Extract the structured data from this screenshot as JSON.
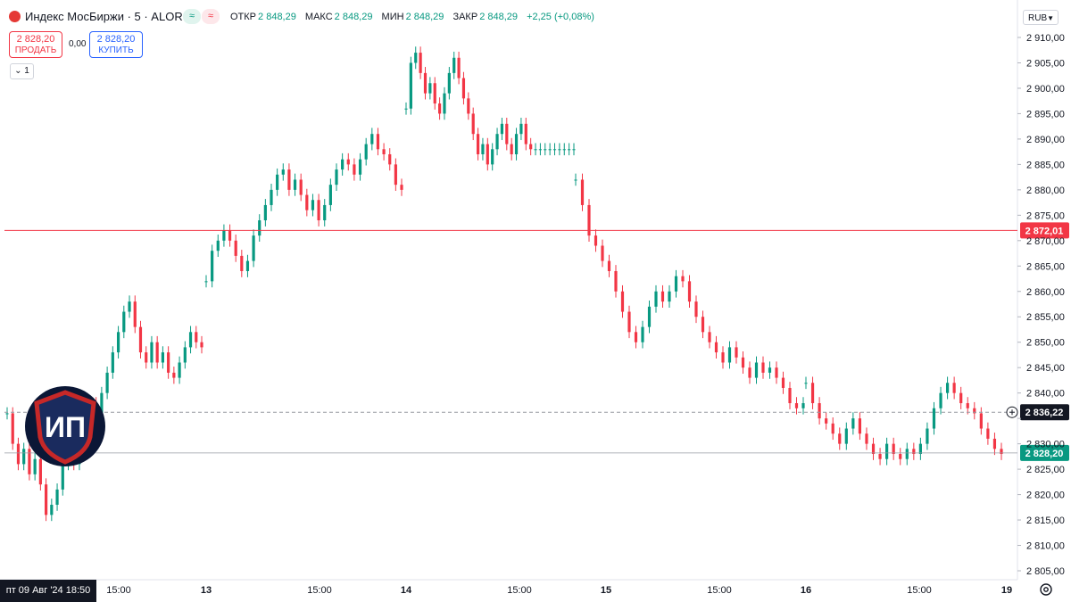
{
  "header": {
    "symbol_title": "Индекс МосБиржи · 5 · ALOR",
    "toggle_left": "≈",
    "toggle_right": "≈",
    "open_label": "ОТКР",
    "open_value": "2 848,29",
    "high_label": "МАКС",
    "high_value": "2 848,29",
    "low_label": "МИН",
    "low_value": "2 848,29",
    "close_label": "ЗАКР",
    "close_value": "2 848,29",
    "change": "+2,25 (+0,08%)"
  },
  "trade": {
    "sell_price": "2 828,20",
    "sell_label": "ПРОДАТЬ",
    "spread": "0,00",
    "buy_price": "2 828,20",
    "buy_label": "КУПИТЬ"
  },
  "collapse_label": "1",
  "currency": "RUB",
  "watermark_text": "ИП",
  "bottom_date": "пт 09 Авг '24   18:50",
  "chart_data": {
    "type": "candlestick",
    "y_axis": {
      "ticks": [
        2910,
        2905,
        2900,
        2895,
        2890,
        2885,
        2880,
        2875,
        2870,
        2865,
        2860,
        2855,
        2850,
        2845,
        2840,
        2835,
        2830,
        2825,
        2820,
        2815,
        2810,
        2805
      ],
      "tick_labels": [
        "2 910,00",
        "2 905,00",
        "2 900,00",
        "2 895,00",
        "2 890,00",
        "2 885,00",
        "2 880,00",
        "2 875,00",
        "2 870,00",
        "2 865,00",
        "2 860,00",
        "2 855,00",
        "2 850,00",
        "2 845,00",
        "2 840,00",
        "",
        "2 830,00",
        "2 825,00",
        "2 820,00",
        "2 815,00",
        "2 810,00",
        "2 805,00"
      ]
    },
    "x_axis": {
      "labels": [
        "15:00",
        "13",
        "15:00",
        "14",
        "15:00",
        "15",
        "15:00",
        "16",
        "15:00",
        "19"
      ],
      "bold": [
        false,
        true,
        false,
        true,
        false,
        true,
        false,
        true,
        false,
        true
      ]
    },
    "price_lines": [
      {
        "value": 2872.01,
        "label": "2 872,01",
        "color": "#f23645",
        "style": "solid"
      },
      {
        "value": 2836.22,
        "label": "2 836,22",
        "color": "#131722",
        "style": "crosshair"
      },
      {
        "value": 2828.2,
        "label": "2 828,20",
        "color": "#089981",
        "style": "last"
      }
    ],
    "colors": {
      "up": "#089981",
      "down": "#f23645"
    },
    "series": [
      {
        "segment": "aug09",
        "closes": [
          2836,
          2830,
          2826,
          2829,
          2824,
          2827,
          2822,
          2816,
          2818,
          2821,
          2826,
          2829,
          2826,
          2828,
          2834,
          2838,
          2836,
          2840,
          2844,
          2848,
          2852,
          2856,
          2858,
          2853,
          2848,
          2846,
          2850,
          2846,
          2848,
          2844,
          2843,
          2846,
          2849,
          2852,
          2850,
          2849
        ]
      },
      {
        "segment": "aug12",
        "closes": [
          2862,
          2868,
          2870,
          2872,
          2870,
          2867,
          2864,
          2866,
          2871,
          2874,
          2877,
          2880,
          2883,
          2884,
          2880,
          2882,
          2879,
          2876,
          2878,
          2874,
          2877,
          2881,
          2884,
          2886,
          2885,
          2883,
          2886,
          2889,
          2891,
          2888,
          2887,
          2885,
          2881,
          2880
        ]
      },
      {
        "segment": "aug13",
        "closes": [
          2896,
          2905,
          2907,
          2903,
          2899,
          2901,
          2897,
          2895,
          2899,
          2903,
          2906,
          2902,
          2898,
          2895,
          2891,
          2887,
          2889,
          2885,
          2888,
          2891,
          2893,
          2889,
          2887,
          2891,
          2893,
          2889,
          2888,
          2888,
          2888,
          2888,
          2888,
          2888,
          2888,
          2888,
          2888,
          2888
        ]
      },
      {
        "segment": "aug13b",
        "closes": [
          2882,
          2877,
          2871,
          2869,
          2866,
          2864,
          2860,
          2856,
          2852,
          2850,
          2853,
          2857,
          2860,
          2858,
          2860,
          2863,
          2862,
          2858,
          2855,
          2852,
          2850,
          2848,
          2846,
          2849,
          2847,
          2845,
          2843,
          2846,
          2844,
          2845,
          2843,
          2841,
          2838,
          2837,
          2838
        ]
      },
      {
        "segment": "aug15",
        "closes": [
          2842,
          2838,
          2835,
          2834,
          2832,
          2830,
          2833,
          2835,
          2832,
          2830,
          2828,
          2827,
          2830,
          2828,
          2827,
          2829,
          2828,
          2830,
          2833,
          2837,
          2840,
          2842,
          2840,
          2838,
          2837,
          2836,
          2833,
          2831,
          2829,
          2828
        ]
      }
    ]
  }
}
